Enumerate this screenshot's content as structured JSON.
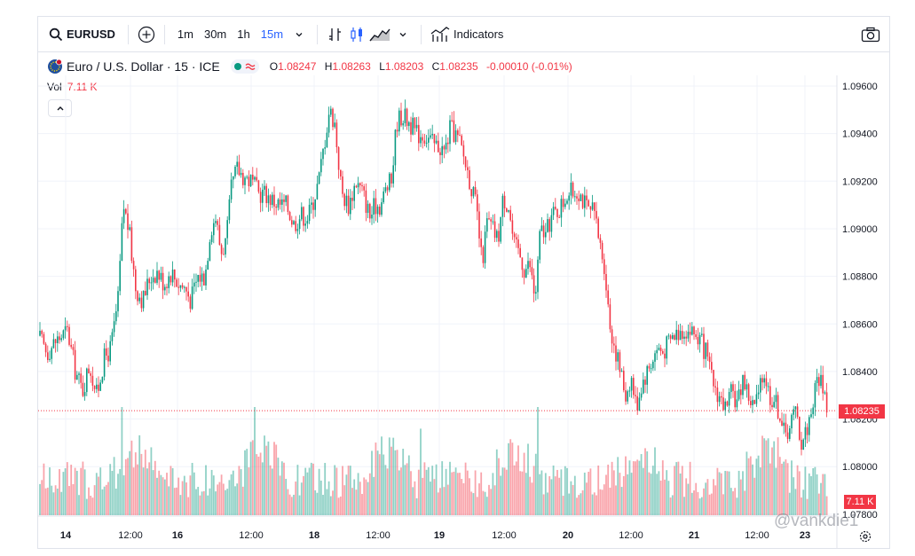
{
  "toolbar": {
    "symbol": "EURUSD",
    "intervals": [
      "1m",
      "30m",
      "1h",
      "15m"
    ],
    "active_interval": "15m",
    "indicators_label": "Indicators",
    "icons": [
      "search-icon",
      "add-symbol-icon",
      "chevron-down-icon",
      "bar-chart-icon",
      "candles-icon",
      "area-chart-icon",
      "indicators-icon",
      "camera-icon"
    ]
  },
  "legend": {
    "title": "Euro / U.S. Dollar · 15 · ICE",
    "o_label": "O",
    "o_value": "1.08247",
    "h_label": "H",
    "h_value": "1.08263",
    "l_label": "L",
    "l_value": "1.08203",
    "c_label": "C",
    "c_value": "1.08235",
    "change": "-0.00010 (-0.01%)",
    "vol_label": "Vol",
    "vol_value": "7.11 K"
  },
  "colors": {
    "up": "#089981",
    "down": "#f23645",
    "accent": "#2962ff"
  },
  "chart_data": {
    "type": "candlestick",
    "price_axis": [
      "1.09600",
      "1.09400",
      "1.09200",
      "1.09000",
      "1.08800",
      "1.08600",
      "1.08400",
      "1.08200",
      "1.08000",
      "1.07800"
    ],
    "ylim": [
      1.0778,
      1.0967
    ],
    "time_axis": [
      {
        "label": "14",
        "bold": true
      },
      {
        "label": "12:00",
        "bold": false
      },
      {
        "label": "16",
        "bold": true
      },
      {
        "label": "12:00",
        "bold": false
      },
      {
        "label": "18",
        "bold": true
      },
      {
        "label": "12:00",
        "bold": false
      },
      {
        "label": "19",
        "bold": true
      },
      {
        "label": "12:00",
        "bold": false
      },
      {
        "label": "20",
        "bold": true
      },
      {
        "label": "12:00",
        "bold": false
      },
      {
        "label": "21",
        "bold": true
      },
      {
        "label": "12:00",
        "bold": false
      },
      {
        "label": "23",
        "bold": true
      }
    ],
    "last_price": "1.08235",
    "last_volume": "7.11 K",
    "price_path": [
      [
        0,
        1.0855
      ],
      [
        10,
        1.0848
      ],
      [
        20,
        1.0853
      ],
      [
        33,
        1.0857
      ],
      [
        42,
        1.084
      ],
      [
        50,
        1.0832
      ],
      [
        58,
        1.0843
      ],
      [
        66,
        1.083
      ],
      [
        74,
        1.0845
      ],
      [
        82,
        1.085
      ],
      [
        90,
        1.087
      ],
      [
        96,
        1.091
      ],
      [
        102,
        1.09
      ],
      [
        110,
        1.0875
      ],
      [
        118,
        1.087
      ],
      [
        126,
        1.088
      ],
      [
        134,
        1.0882
      ],
      [
        142,
        1.0877
      ],
      [
        150,
        1.0882
      ],
      [
        158,
        1.0877
      ],
      [
        166,
        1.0875
      ],
      [
        172,
        1.087
      ],
      [
        180,
        1.088
      ],
      [
        188,
        1.088
      ],
      [
        194,
        1.09
      ],
      [
        200,
        1.0905
      ],
      [
        206,
        1.089
      ],
      [
        212,
        1.0895
      ],
      [
        218,
        1.0918
      ],
      [
        224,
        1.0925
      ],
      [
        232,
        1.0922
      ],
      [
        240,
        1.092
      ],
      [
        248,
        1.0915
      ],
      [
        256,
        1.0915
      ],
      [
        264,
        1.0912
      ],
      [
        272,
        1.091
      ],
      [
        280,
        1.091
      ],
      [
        288,
        1.0902
      ],
      [
        296,
        1.0906
      ],
      [
        304,
        1.0905
      ],
      [
        310,
        1.0912
      ],
      [
        316,
        1.092
      ],
      [
        322,
        1.0935
      ],
      [
        328,
        1.095
      ],
      [
        334,
        1.0945
      ],
      [
        342,
        1.0915
      ],
      [
        350,
        1.091
      ],
      [
        358,
        1.092
      ],
      [
        366,
        1.0915
      ],
      [
        374,
        1.0905
      ],
      [
        380,
        1.091
      ],
      [
        386,
        1.091
      ],
      [
        392,
        1.0917
      ],
      [
        398,
        1.092
      ],
      [
        404,
        1.0945
      ],
      [
        410,
        1.0948
      ],
      [
        418,
        1.0945
      ],
      [
        426,
        1.094
      ],
      [
        434,
        1.094
      ],
      [
        440,
        1.0938
      ],
      [
        446,
        1.0935
      ],
      [
        452,
        1.0935
      ],
      [
        458,
        1.0932
      ],
      [
        464,
        1.0942
      ],
      [
        470,
        1.094
      ],
      [
        476,
        1.0935
      ],
      [
        482,
        1.0927
      ],
      [
        488,
        1.0918
      ],
      [
        494,
        1.0908
      ],
      [
        500,
        1.0885
      ],
      [
        506,
        1.0903
      ],
      [
        512,
        1.09
      ],
      [
        518,
        1.0895
      ],
      [
        524,
        1.0913
      ],
      [
        530,
        1.091
      ],
      [
        536,
        1.0893
      ],
      [
        542,
        1.089
      ],
      [
        548,
        1.0883
      ],
      [
        554,
        1.0885
      ],
      [
        560,
        1.087
      ],
      [
        566,
        1.09
      ],
      [
        572,
        1.0897
      ],
      [
        578,
        1.0905
      ],
      [
        584,
        1.0907
      ],
      [
        590,
        1.091
      ],
      [
        596,
        1.0915
      ],
      [
        602,
        1.0915
      ],
      [
        608,
        1.0917
      ],
      [
        614,
        1.0912
      ],
      [
        620,
        1.0907
      ],
      [
        626,
        1.0907
      ],
      [
        632,
        1.0895
      ],
      [
        638,
        1.0885
      ],
      [
        644,
        1.086
      ],
      [
        650,
        1.085
      ],
      [
        656,
        1.084
      ],
      [
        662,
        1.083
      ],
      [
        668,
        1.0838
      ],
      [
        674,
        1.0825
      ],
      [
        680,
        1.0835
      ],
      [
        686,
        1.084
      ],
      [
        692,
        1.0845
      ],
      [
        698,
        1.085
      ],
      [
        704,
        1.0848
      ],
      [
        710,
        1.0852
      ],
      [
        716,
        1.0855
      ],
      [
        722,
        1.0857
      ],
      [
        728,
        1.0858
      ],
      [
        734,
        1.0857
      ],
      [
        740,
        1.0856
      ],
      [
        746,
        1.0853
      ],
      [
        752,
        1.0848
      ],
      [
        758,
        1.0838
      ],
      [
        764,
        1.0832
      ],
      [
        770,
        1.0828
      ],
      [
        776,
        1.0823
      ],
      [
        782,
        1.0832
      ],
      [
        788,
        1.0826
      ],
      [
        794,
        1.0838
      ],
      [
        800,
        1.083
      ],
      [
        806,
        1.0825
      ],
      [
        812,
        1.083
      ],
      [
        818,
        1.084
      ],
      [
        824,
        1.083
      ],
      [
        830,
        1.0828
      ],
      [
        836,
        1.0822
      ],
      [
        842,
        1.0812
      ],
      [
        848,
        1.082
      ],
      [
        854,
        1.0823
      ],
      [
        860,
        1.081
      ],
      [
        866,
        1.0816
      ],
      [
        872,
        1.0825
      ],
      [
        878,
        1.0838
      ],
      [
        884,
        1.0835
      ],
      [
        890,
        1.0823
      ]
    ],
    "volume_spikes": [
      [
        94,
        1.0
      ],
      [
        244,
        1.0
      ],
      [
        430,
        0.8
      ],
      [
        562,
        1.0
      ],
      [
        834,
        0.72
      ]
    ]
  }
}
